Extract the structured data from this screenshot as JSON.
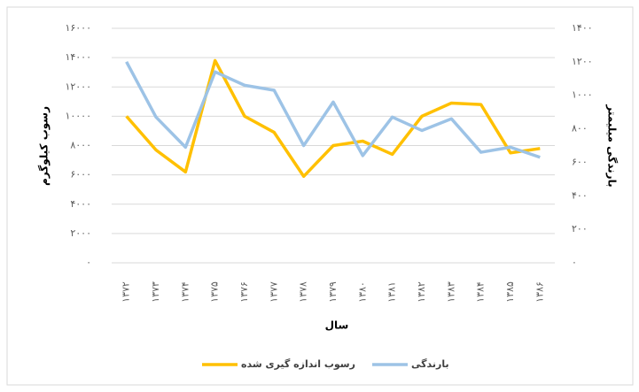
{
  "chart_data": {
    "type": "line",
    "categories": [
      "۱۳۷۲",
      "۱۳۷۳",
      "۱۳۷۴",
      "۱۳۷۵",
      "۱۳۷۶",
      "۱۳۷۷",
      "۱۳۷۸",
      "۱۳۷۹",
      "۱۳۸۰",
      "۱۳۸۱",
      "۱۳۸۲",
      "۱۳۸۳",
      "۱۳۸۴",
      "۱۳۸۵",
      "۱۳۸۶"
    ],
    "series": [
      {
        "name": "رسوب اندازه گیری شده",
        "color": "#ffc000",
        "values": [
          10000,
          7700,
          6200,
          13800,
          10000,
          8900,
          5900,
          8000,
          8300,
          7400,
          10000,
          10900,
          10800,
          7500,
          7800
        ]
      },
      {
        "name": "بارندگی",
        "color": "#9dc3e6",
        "axis": "y2",
        "values": [
          1200,
          870,
          690,
          1140,
          1060,
          1030,
          700,
          960,
          640,
          870,
          790,
          860,
          660,
          690,
          630
        ]
      }
    ],
    "xlabel": "سال",
    "ylabel": "رسوب کیلوگرم",
    "y2label": "بارندگی میلیمتر",
    "ylim": [
      0,
      16000
    ],
    "yticks": [
      {
        "value": 0,
        "label": "۰"
      },
      {
        "value": 2000,
        "label": "۲۰۰۰"
      },
      {
        "value": 4000,
        "label": "۴۰۰۰"
      },
      {
        "value": 6000,
        "label": "۶۰۰۰"
      },
      {
        "value": 8000,
        "label": "۸۰۰۰"
      },
      {
        "value": 10000,
        "label": "۱۰۰۰۰"
      },
      {
        "value": 12000,
        "label": "۱۲۰۰۰"
      },
      {
        "value": 14000,
        "label": "۱۴۰۰۰"
      },
      {
        "value": 16000,
        "label": "۱۶۰۰۰"
      }
    ],
    "y2lim": [
      0,
      1400
    ],
    "y2ticks": [
      {
        "value": 0,
        "label": "۰"
      },
      {
        "value": 200,
        "label": "۲۰۰"
      },
      {
        "value": 400,
        "label": "۴۰۰"
      },
      {
        "value": 600,
        "label": "۶۰۰"
      },
      {
        "value": 800,
        "label": "۸۰۰"
      },
      {
        "value": 1000,
        "label": "۱۰۰۰"
      },
      {
        "value": 1200,
        "label": "۱۲۰۰"
      },
      {
        "value": 1400,
        "label": "۱۴۰۰"
      }
    ],
    "grid": true,
    "legend": "bottom"
  }
}
